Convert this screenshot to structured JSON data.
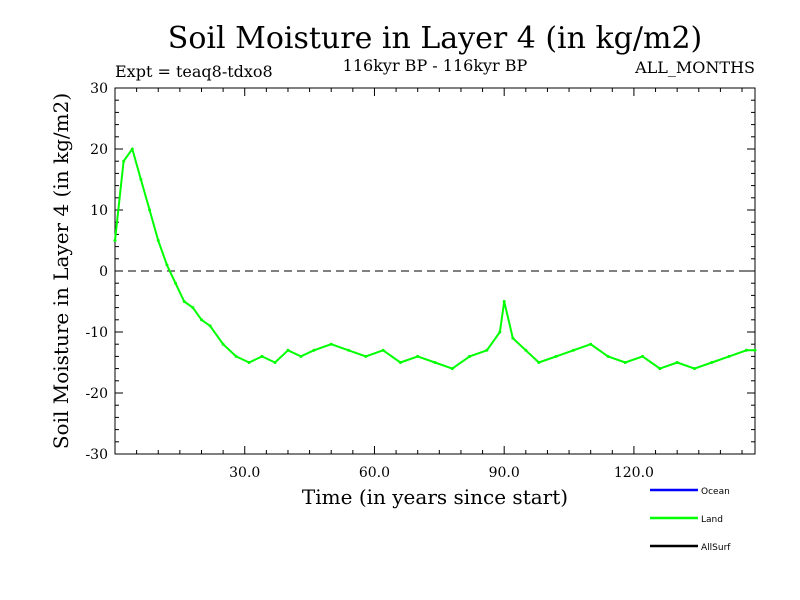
{
  "chart_data": {
    "type": "line",
    "title": "Soil Moisture in Layer 4 (in kg/m2)",
    "subtitle_left": "Expt = teaq8-tdxo8",
    "subtitle_center": "116kyr BP - 116kyr BP",
    "subtitle_right": "ALL_MONTHS",
    "xlabel": "Time (in years since start)",
    "ylabel": "Soil Moisture in Layer 4 (in kg/m2)",
    "xlim": [
      0,
      148
    ],
    "ylim": [
      -30,
      30
    ],
    "xticks": [
      30,
      60,
      90,
      120
    ],
    "xtick_labels": [
      "30.0",
      "60.0",
      "90.0",
      "120.0"
    ],
    "yticks": [
      -30,
      -20,
      -10,
      0,
      10,
      20,
      30
    ],
    "ytick_labels": [
      "-30",
      "-20",
      "-10",
      "0",
      "10",
      "20",
      "30"
    ],
    "reference_line": 0,
    "legend_position": "bottom-right",
    "series": [
      {
        "name": "Ocean",
        "color": "#0000ff",
        "values": []
      },
      {
        "name": "Land",
        "color": "#00ff00",
        "x": [
          0,
          2,
          4,
          6,
          8,
          10,
          12,
          14,
          16,
          18,
          20,
          22,
          25,
          28,
          31,
          34,
          37,
          40,
          43,
          46,
          50,
          54,
          58,
          62,
          66,
          70,
          74,
          78,
          82,
          86,
          89,
          90,
          92,
          95,
          98,
          102,
          106,
          110,
          114,
          118,
          122,
          126,
          130,
          134,
          138,
          142,
          146,
          148
        ],
        "values": [
          5,
          18,
          20,
          15,
          10,
          5,
          1,
          -2,
          -5,
          -6,
          -8,
          -9,
          -12,
          -14,
          -15,
          -14,
          -15,
          -13,
          -14,
          -13,
          -12,
          -13,
          -14,
          -13,
          -15,
          -14,
          -15,
          -16,
          -14,
          -13,
          -10,
          -5,
          -11,
          -13,
          -15,
          -14,
          -13,
          -12,
          -14,
          -15,
          -14,
          -16,
          -15,
          -16,
          -15,
          -14,
          -13,
          -13
        ]
      },
      {
        "name": "AllSurf",
        "color": "#000000",
        "values": []
      }
    ]
  }
}
